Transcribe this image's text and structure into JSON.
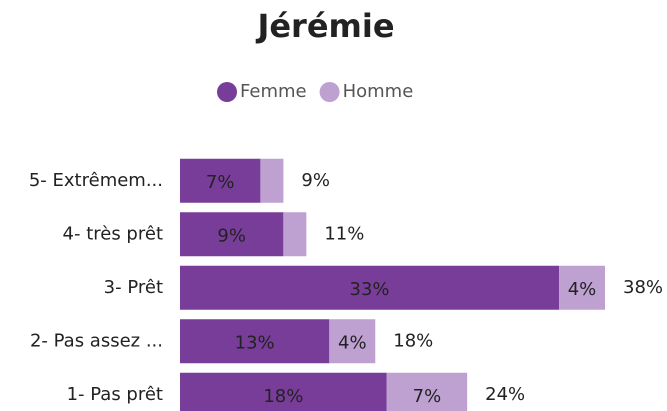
{
  "chart_data": {
    "type": "stacked-bar-horizontal",
    "title": "Jérémie",
    "categories": [
      "5- Extrêmem...",
      "4- très prêt",
      "3- Prêt",
      "2- Pas assez ...",
      "1- Pas prêt"
    ],
    "series": [
      {
        "name": "Femme",
        "color": "#773d98",
        "values": [
          7,
          9,
          33,
          13,
          18
        ],
        "value_labels": [
          "7%",
          "9%",
          "33%",
          "13%",
          "18%"
        ]
      },
      {
        "name": "Homme",
        "color": "#bea0d1",
        "values": [
          2,
          2,
          4,
          4,
          7
        ],
        "value_labels": [
          null,
          null,
          "4%",
          "4%",
          "7%"
        ]
      }
    ],
    "totals": [
      9,
      11,
      38,
      18,
      24
    ],
    "total_labels": [
      "9%",
      "11%",
      "38%",
      "18%",
      "24%"
    ],
    "legend": "top"
  }
}
